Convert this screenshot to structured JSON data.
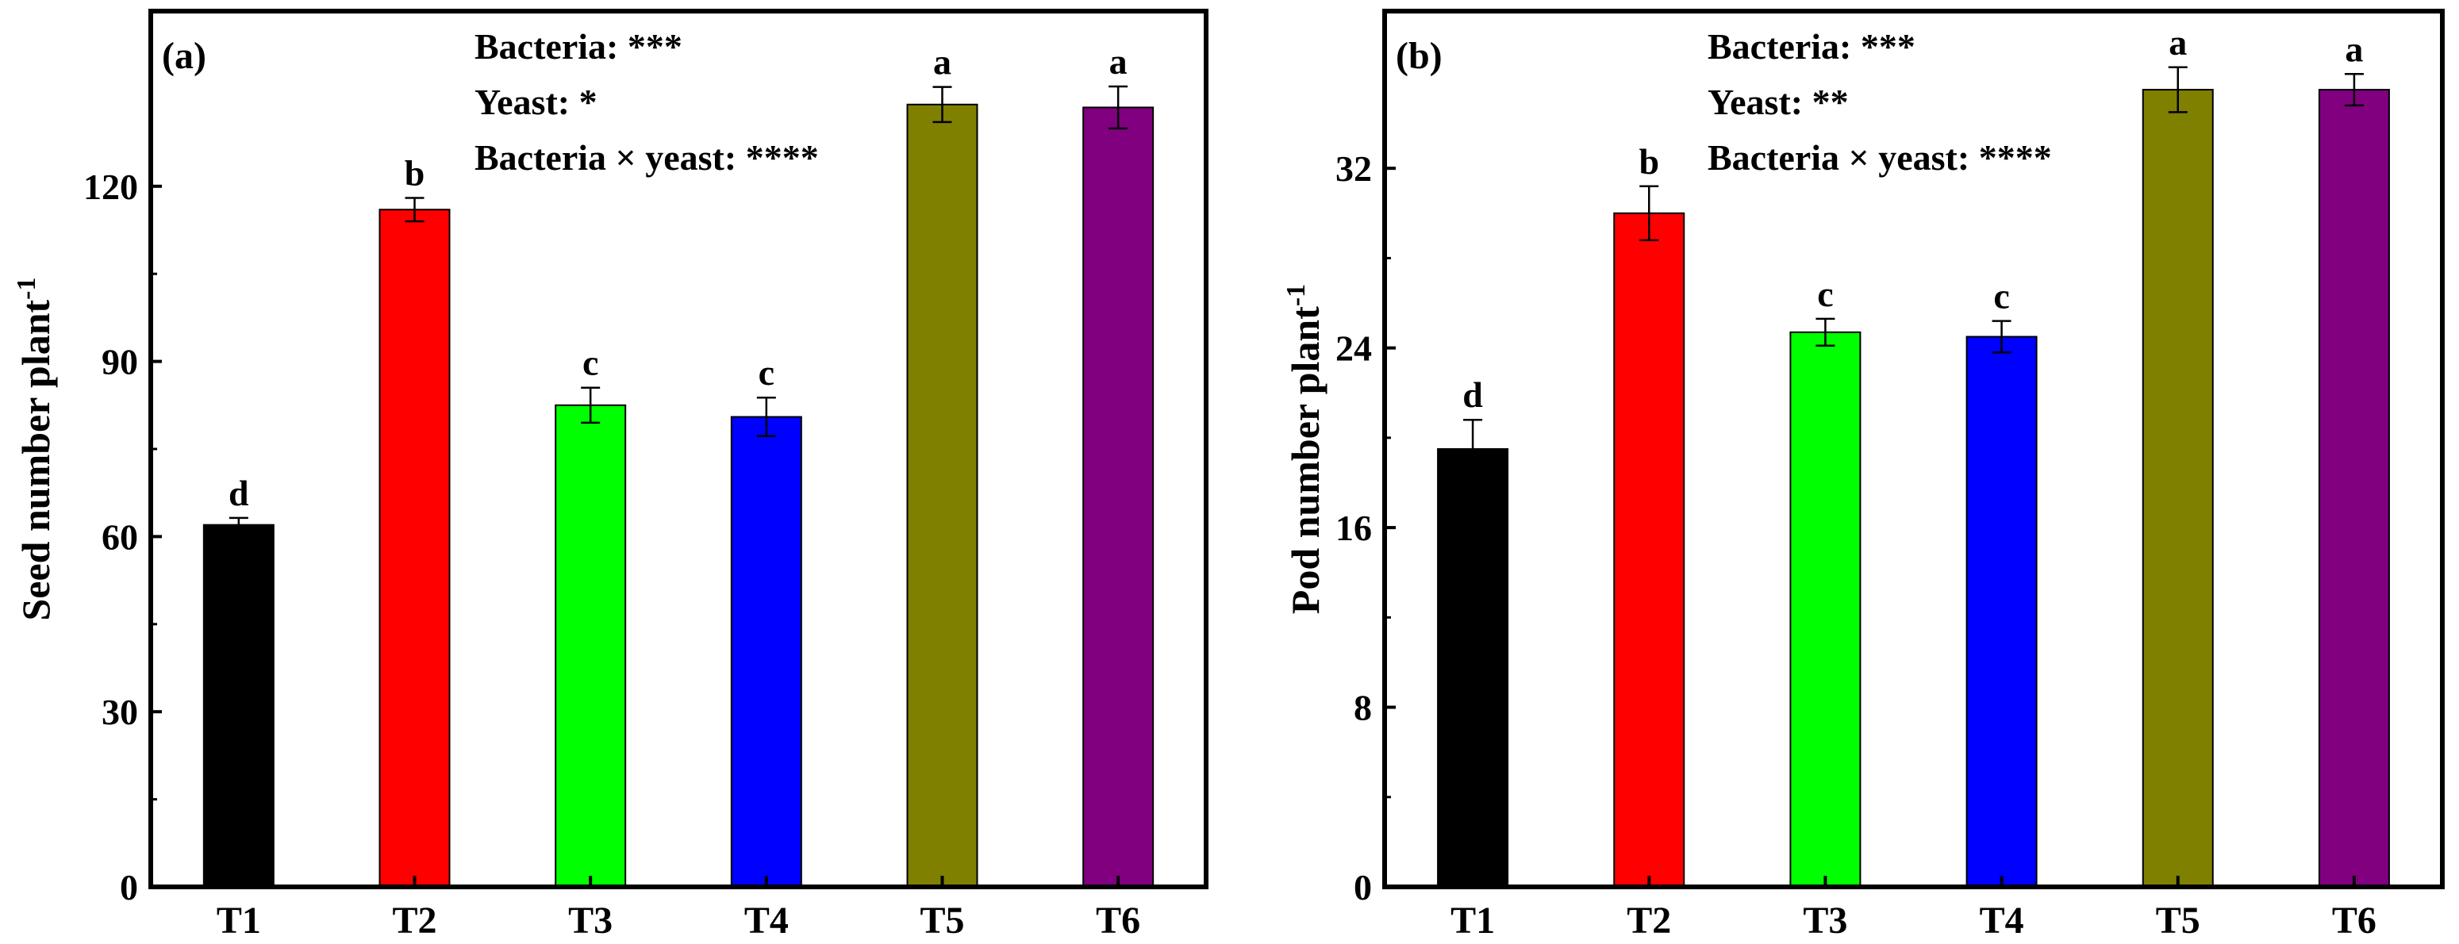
{
  "chart_data": [
    {
      "type": "bar",
      "panel_label": "(a)",
      "title": "",
      "xlabel": "",
      "ylabel": "Seed number plant",
      "ylabel_superscript": "-1",
      "ylim": [
        0,
        150
      ],
      "yticks": [
        "0",
        "30",
        "60",
        "90",
        "120"
      ],
      "ytick_values": [
        0,
        30,
        60,
        90,
        120
      ],
      "categories": [
        "T1",
        "T2",
        "T3",
        "T4",
        "T5",
        "T6"
      ],
      "values": [
        62,
        116,
        82.5,
        80.5,
        134,
        133.5
      ],
      "errors": [
        1.2,
        2.0,
        3.0,
        3.3,
        3.0,
        3.6
      ],
      "sig_letters": [
        "d",
        "b",
        "c",
        "c",
        "a",
        "a"
      ],
      "colors": [
        "#000000",
        "#ff0000",
        "#00ff00",
        "#0000ff",
        "#808000",
        "#800080"
      ],
      "annotations": [
        "Bacteria: ***",
        "Yeast: *",
        "Bacteria × yeast: ****"
      ]
    },
    {
      "type": "bar",
      "panel_label": "(b)",
      "title": "",
      "xlabel": "",
      "ylabel": "Pod number plant",
      "ylabel_superscript": "-1",
      "ylim": [
        0,
        39
      ],
      "yticks": [
        "0",
        "8",
        "16",
        "24",
        "32"
      ],
      "ytick_values": [
        0,
        8,
        16,
        24,
        32
      ],
      "categories": [
        "T1",
        "T2",
        "T3",
        "T4",
        "T5",
        "T6"
      ],
      "values": [
        19.5,
        30,
        24.7,
        24.5,
        35.5,
        35.5
      ],
      "errors": [
        1.3,
        1.2,
        0.6,
        0.7,
        1.0,
        0.7
      ],
      "sig_letters": [
        "d",
        "b",
        "c",
        "c",
        "a",
        "a"
      ],
      "colors": [
        "#000000",
        "#ff0000",
        "#00ff00",
        "#0000ff",
        "#808000",
        "#800080"
      ],
      "annotations": [
        "Bacteria: ***",
        "Yeast: **",
        "Bacteria × yeast: ****"
      ]
    }
  ]
}
